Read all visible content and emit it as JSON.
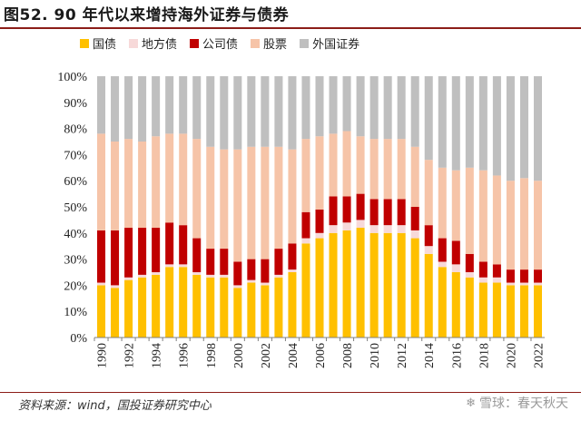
{
  "header": {
    "title": "图52. 90 年代以来增持海外证券与债券"
  },
  "colors": {
    "guozhai": "#ffc000",
    "difangzhai": "#f7d9d9",
    "gongsizhai": "#c00000",
    "gupiao": "#f6c4a8",
    "waiguozhengquan": "#bfbfbf"
  },
  "chart_data": {
    "type": "stacked_bar",
    "title": "图52. 90 年代以来增持海外证券与债券",
    "categories": [
      "1990",
      "1991",
      "1992",
      "1993",
      "1994",
      "1995",
      "1996",
      "1997",
      "1998",
      "1999",
      "2000",
      "2001",
      "2002",
      "2003",
      "2004",
      "2005",
      "2006",
      "2007",
      "2008",
      "2009",
      "2010",
      "2011",
      "2012",
      "2013",
      "2014",
      "2015",
      "2016",
      "2017",
      "2018",
      "2019",
      "2020",
      "2021",
      "2022"
    ],
    "x_tick_labels": [
      "1990",
      "1992",
      "1994",
      "1996",
      "1998",
      "2000",
      "2002",
      "2004",
      "2006",
      "2008",
      "2010",
      "2012",
      "2014",
      "2016",
      "2018",
      "2020",
      "2022"
    ],
    "ylim": [
      0,
      100
    ],
    "y_ticks": [
      "0%",
      "10%",
      "20%",
      "30%",
      "40%",
      "50%",
      "60%",
      "70%",
      "80%",
      "90%",
      "100%"
    ],
    "legend_position": "top",
    "series": [
      {
        "name": "国债",
        "color_key": "guozhai",
        "values": [
          20,
          19,
          22,
          23,
          24,
          27,
          27,
          24,
          23,
          23,
          19,
          21,
          20,
          23,
          25,
          36,
          38,
          40,
          41,
          42,
          40,
          40,
          40,
          38,
          32,
          27,
          25,
          23,
          21,
          21,
          20,
          20,
          20
        ]
      },
      {
        "name": "地方债",
        "color_key": "difangzhai",
        "values": [
          1,
          1,
          1,
          1,
          1,
          1,
          1,
          1,
          1,
          1,
          1,
          1,
          1,
          1,
          1,
          2,
          2,
          3,
          3,
          3,
          3,
          3,
          3,
          3,
          3,
          2,
          3,
          2,
          2,
          2,
          1,
          1,
          1
        ]
      },
      {
        "name": "公司债",
        "color_key": "gongsizhai",
        "values": [
          20,
          21,
          19,
          18,
          17,
          16,
          15,
          13,
          10,
          10,
          9,
          8,
          9,
          10,
          10,
          10,
          9,
          11,
          10,
          10,
          10,
          10,
          10,
          9,
          8,
          9,
          9,
          7,
          6,
          5,
          5,
          5,
          5
        ]
      },
      {
        "name": "股票",
        "color_key": "gupiao",
        "values": [
          37,
          34,
          34,
          33,
          35,
          34,
          35,
          38,
          39,
          38,
          43,
          43,
          43,
          39,
          36,
          28,
          28,
          24,
          25,
          22,
          23,
          23,
          23,
          23,
          25,
          27,
          27,
          33,
          35,
          34,
          34,
          35,
          34
        ]
      },
      {
        "name": "外国证券",
        "color_key": "waiguozhengquan",
        "values": [
          22,
          25,
          24,
          25,
          23,
          22,
          22,
          24,
          27,
          28,
          28,
          27,
          27,
          27,
          28,
          24,
          23,
          22,
          21,
          23,
          24,
          24,
          24,
          27,
          32,
          35,
          36,
          35,
          36,
          38,
          40,
          39,
          40
        ]
      }
    ]
  },
  "footer": {
    "source": "资料来源：wind，国投证券研究中心",
    "watermark": "雪球：春天秋天"
  }
}
